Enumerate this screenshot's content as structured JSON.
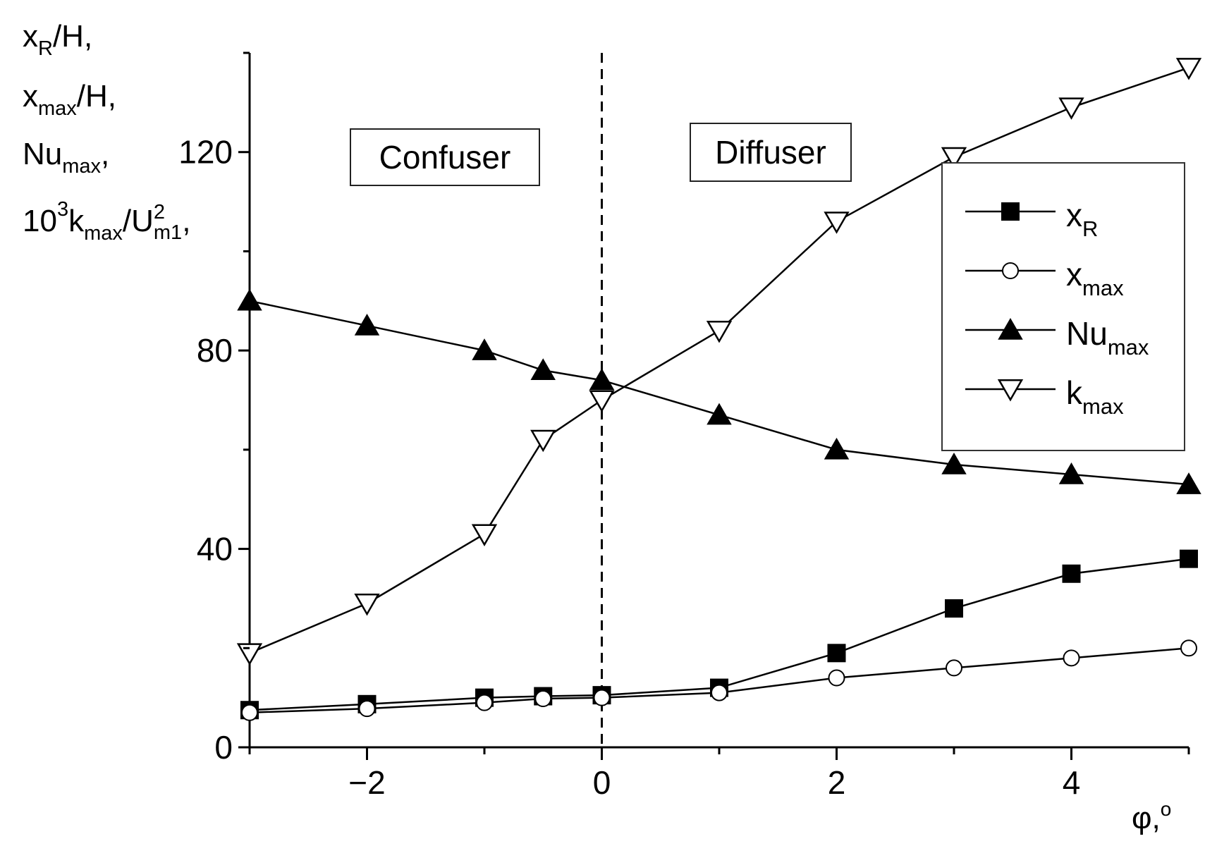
{
  "chart_data": {
    "type": "line",
    "xlabel": "φ,",
    "xlabel_sup": "o",
    "ylabel_lines": [
      {
        "base": "x",
        "sub": "R",
        "rest": "/H,"
      },
      {
        "base": "x",
        "sub": "max",
        "rest": "/H,"
      },
      {
        "base": "Nu",
        "sub": "max",
        "rest": ","
      },
      {
        "prefix": "10",
        "prefix_sup": "3",
        "base": "k",
        "sub": "max",
        "mid": "/U",
        "mid_sup": "2",
        "mid_sub": "m1",
        "rest": ","
      }
    ],
    "xlim": [
      -3,
      5
    ],
    "ylim": [
      0,
      140
    ],
    "x_ticks": [
      {
        "value": -2,
        "label": "−2"
      },
      {
        "value": 0,
        "label": "0"
      },
      {
        "value": 2,
        "label": "2"
      },
      {
        "value": 4,
        "label": "4"
      }
    ],
    "y_ticks": [
      {
        "value": 0,
        "label": "0"
      },
      {
        "value": 40,
        "label": "40"
      },
      {
        "value": 80,
        "label": "80"
      },
      {
        "value": 120,
        "label": "120"
      }
    ],
    "grid": false,
    "vertical_reference_line": {
      "x": 0,
      "style": "dashed"
    },
    "annotations": [
      {
        "text": "Confuser",
        "region": "x < 0"
      },
      {
        "text": "Diffuser",
        "region": "x > 0"
      }
    ],
    "legend_placement": "right",
    "series": [
      {
        "name": "x",
        "name_sub": "R",
        "marker": "filled-square",
        "x": [
          -3,
          -2,
          -1,
          -0.5,
          0,
          1,
          2,
          3,
          4,
          5
        ],
        "y": [
          7.5,
          8.7,
          10,
          10.3,
          10.5,
          12,
          19,
          28,
          35,
          38
        ]
      },
      {
        "name": "x",
        "name_sub": "max",
        "marker": "open-circle",
        "x": [
          -3,
          -2,
          -1,
          -0.5,
          0,
          1,
          2,
          3,
          4,
          5
        ],
        "y": [
          7,
          7.8,
          9,
          9.8,
          10,
          11,
          14,
          16,
          18,
          20
        ]
      },
      {
        "name": "Nu",
        "name_sub": "max",
        "marker": "filled-triangle-up",
        "x": [
          -3,
          -2,
          -1,
          -0.5,
          0,
          1,
          2,
          3,
          4,
          5
        ],
        "y": [
          90,
          85,
          80,
          76,
          74,
          67,
          60,
          57,
          55,
          53
        ]
      },
      {
        "name": "k",
        "name_sub": "max",
        "marker": "open-triangle-down",
        "x": [
          -3,
          -2,
          -1,
          -0.5,
          0,
          1,
          2,
          3,
          4,
          5
        ],
        "y": [
          19,
          29,
          43,
          62,
          70,
          84,
          106,
          119,
          129,
          137
        ]
      }
    ]
  }
}
